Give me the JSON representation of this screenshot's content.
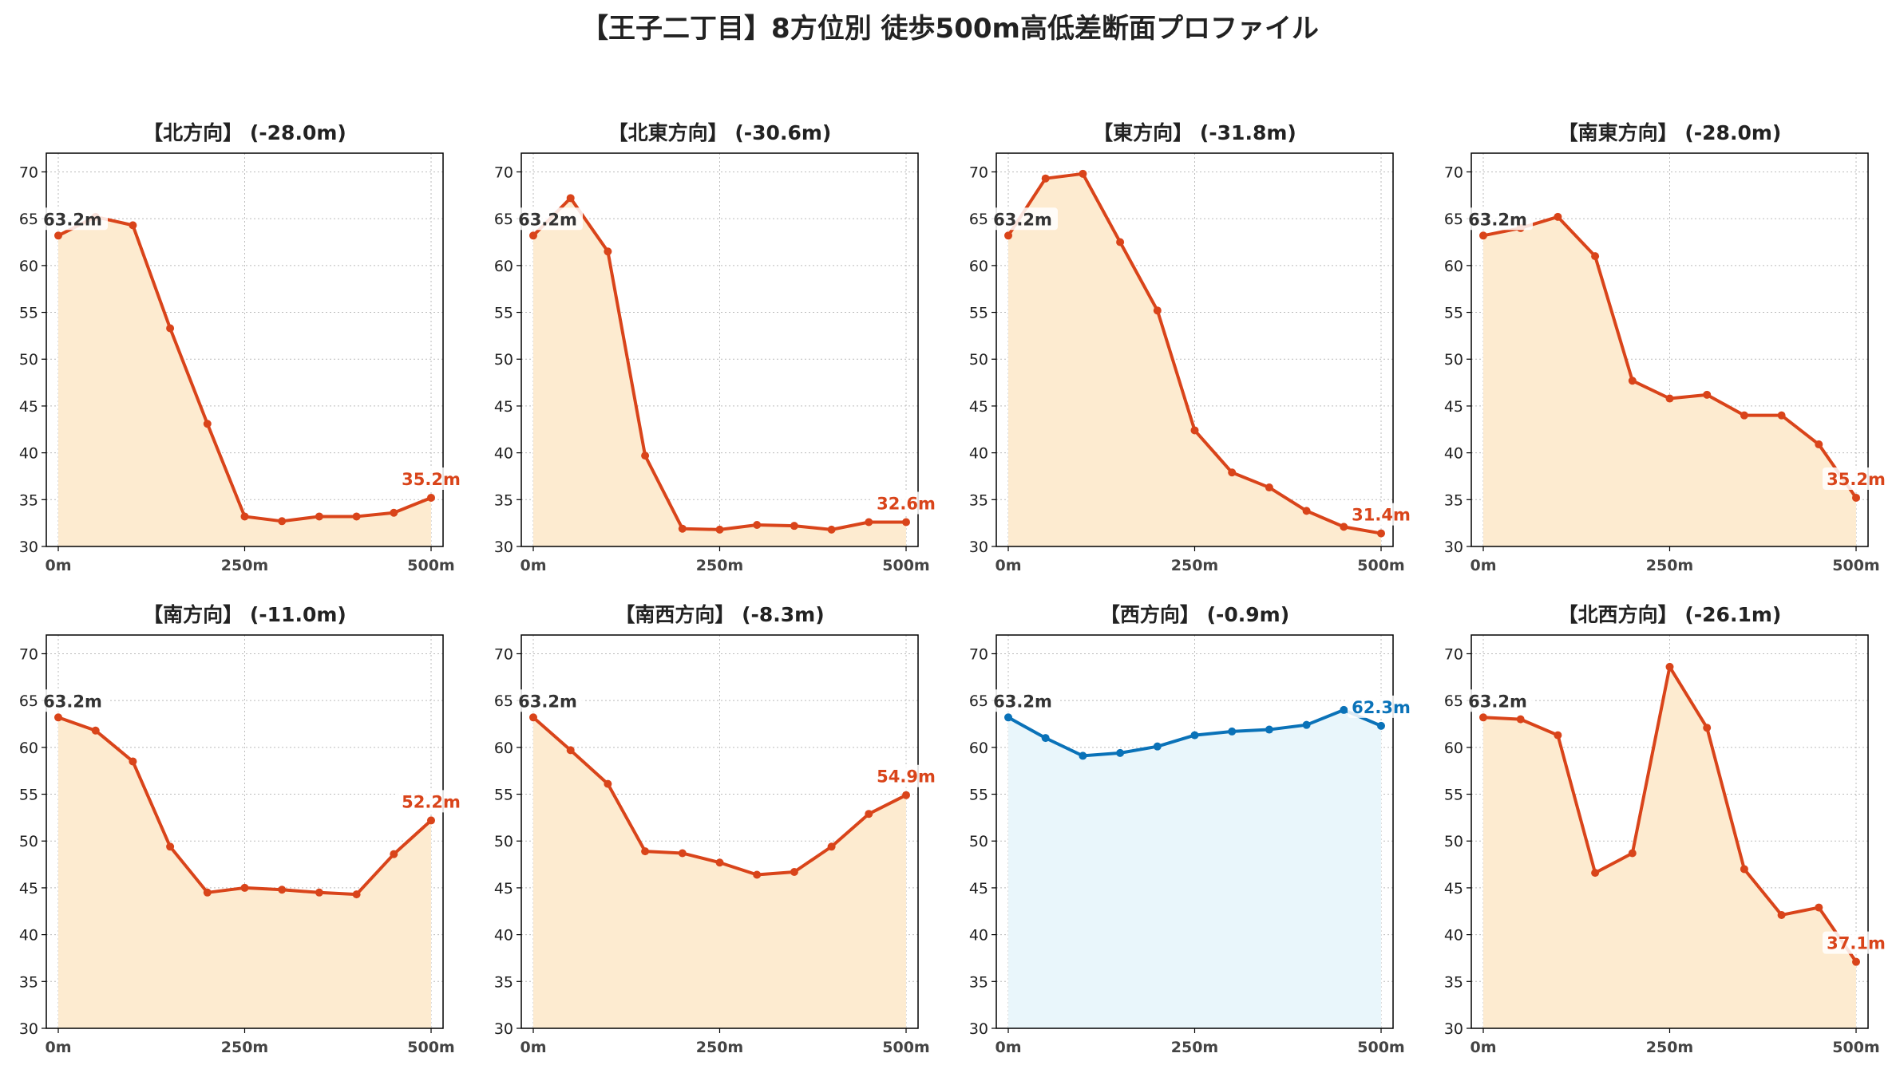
{
  "title": "【王子二丁目】8方位別 徒歩500m高低差断面プロファイル",
  "colors": {
    "down_line": "#d9441a",
    "down_fill": "#fdebd0",
    "up_line": "#0a72b8",
    "up_fill": "#e9f6fb",
    "start_label": "#333333",
    "grid": "#bbbbbb"
  },
  "chart_data": [
    {
      "type": "area",
      "title": "【北方向】 (-28.0m)",
      "x": [
        0,
        50,
        100,
        150,
        200,
        250,
        300,
        350,
        400,
        450,
        500
      ],
      "values": [
        63.2,
        65.2,
        64.3,
        53.3,
        43.1,
        33.2,
        32.7,
        33.2,
        33.2,
        33.6,
        35.2
      ],
      "start_label": "63.2m",
      "end_label": "35.2m",
      "trend": "down",
      "ylim": [
        30,
        72
      ],
      "yticks": [
        30,
        35,
        40,
        45,
        50,
        55,
        60,
        65,
        70
      ],
      "xticks": [
        "0m",
        "250m",
        "500m"
      ],
      "grid": true
    },
    {
      "type": "area",
      "title": "【北東方向】 (-30.6m)",
      "x": [
        0,
        50,
        100,
        150,
        200,
        250,
        300,
        350,
        400,
        450,
        500
      ],
      "values": [
        63.2,
        67.2,
        61.5,
        39.7,
        31.9,
        31.8,
        32.3,
        32.2,
        31.8,
        32.6,
        32.6
      ],
      "start_label": "63.2m",
      "end_label": "32.6m",
      "trend": "down",
      "ylim": [
        30,
        72
      ],
      "yticks": [
        30,
        35,
        40,
        45,
        50,
        55,
        60,
        65,
        70
      ],
      "xticks": [
        "0m",
        "250m",
        "500m"
      ],
      "grid": true
    },
    {
      "type": "area",
      "title": "【東方向】 (-31.8m)",
      "x": [
        0,
        50,
        100,
        150,
        200,
        250,
        300,
        350,
        400,
        450,
        500
      ],
      "values": [
        63.2,
        69.3,
        69.8,
        62.5,
        55.2,
        42.4,
        37.9,
        36.3,
        33.8,
        32.1,
        31.4
      ],
      "start_label": "63.2m",
      "end_label": "31.4m",
      "trend": "down",
      "ylim": [
        30,
        72
      ],
      "yticks": [
        30,
        35,
        40,
        45,
        50,
        55,
        60,
        65,
        70
      ],
      "xticks": [
        "0m",
        "250m",
        "500m"
      ],
      "grid": true
    },
    {
      "type": "area",
      "title": "【南東方向】 (-28.0m)",
      "x": [
        0,
        50,
        100,
        150,
        200,
        250,
        300,
        350,
        400,
        450,
        500
      ],
      "values": [
        63.2,
        64.0,
        65.2,
        61.0,
        47.7,
        45.8,
        46.2,
        44.0,
        44.0,
        40.9,
        35.2
      ],
      "start_label": "63.2m",
      "end_label": "35.2m",
      "trend": "down",
      "ylim": [
        30,
        72
      ],
      "yticks": [
        30,
        35,
        40,
        45,
        50,
        55,
        60,
        65,
        70
      ],
      "xticks": [
        "0m",
        "250m",
        "500m"
      ],
      "grid": true
    },
    {
      "type": "area",
      "title": "【南方向】 (-11.0m)",
      "x": [
        0,
        50,
        100,
        150,
        200,
        250,
        300,
        350,
        400,
        450,
        500
      ],
      "values": [
        63.2,
        61.8,
        58.5,
        49.4,
        44.5,
        45.0,
        44.8,
        44.5,
        44.3,
        48.6,
        52.2
      ],
      "start_label": "63.2m",
      "end_label": "52.2m",
      "trend": "down",
      "ylim": [
        30,
        72
      ],
      "yticks": [
        30,
        35,
        40,
        45,
        50,
        55,
        60,
        65,
        70
      ],
      "xticks": [
        "0m",
        "250m",
        "500m"
      ],
      "grid": true
    },
    {
      "type": "area",
      "title": "【南西方向】 (-8.3m)",
      "x": [
        0,
        50,
        100,
        150,
        200,
        250,
        300,
        350,
        400,
        450,
        500
      ],
      "values": [
        63.2,
        59.7,
        56.1,
        48.9,
        48.7,
        47.7,
        46.4,
        46.7,
        49.4,
        52.9,
        54.9
      ],
      "start_label": "63.2m",
      "end_label": "54.9m",
      "trend": "down",
      "ylim": [
        30,
        72
      ],
      "yticks": [
        30,
        35,
        40,
        45,
        50,
        55,
        60,
        65,
        70
      ],
      "xticks": [
        "0m",
        "250m",
        "500m"
      ],
      "grid": true
    },
    {
      "type": "area",
      "title": "【西方向】 (-0.9m)",
      "x": [
        0,
        50,
        100,
        150,
        200,
        250,
        300,
        350,
        400,
        450,
        500
      ],
      "values": [
        63.2,
        61.0,
        59.1,
        59.4,
        60.1,
        61.3,
        61.7,
        61.9,
        62.4,
        64.0,
        62.3
      ],
      "start_label": "63.2m",
      "end_label": "62.3m",
      "trend": "flat",
      "ylim": [
        30,
        72
      ],
      "yticks": [
        30,
        35,
        40,
        45,
        50,
        55,
        60,
        65,
        70
      ],
      "xticks": [
        "0m",
        "250m",
        "500m"
      ],
      "grid": true
    },
    {
      "type": "area",
      "title": "【北西方向】 (-26.1m)",
      "x": [
        0,
        50,
        100,
        150,
        200,
        250,
        300,
        350,
        400,
        450,
        500
      ],
      "values": [
        63.2,
        63.0,
        61.3,
        46.6,
        48.7,
        68.6,
        62.1,
        47.0,
        42.1,
        42.9,
        37.1
      ],
      "start_label": "63.2m",
      "end_label": "37.1m",
      "trend": "down",
      "ylim": [
        30,
        72
      ],
      "yticks": [
        30,
        35,
        40,
        45,
        50,
        55,
        60,
        65,
        70
      ],
      "xticks": [
        "0m",
        "250m",
        "500m"
      ],
      "grid": true
    }
  ]
}
